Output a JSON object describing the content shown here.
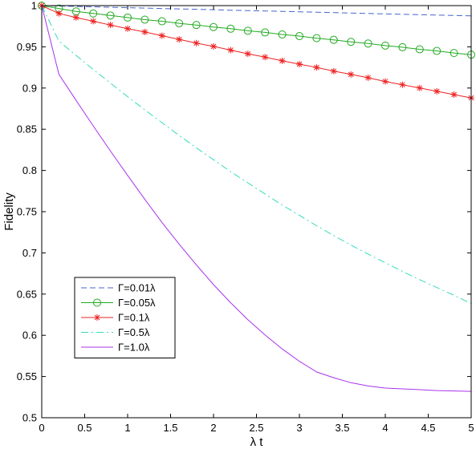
{
  "chart_data": {
    "type": "line",
    "xlabel": "λ t",
    "ylabel": "Fidelity",
    "xlim": [
      0,
      5
    ],
    "ylim": [
      0.5,
      1.0
    ],
    "xticks": [
      0,
      0.5,
      1,
      1.5,
      2,
      2.5,
      3,
      3.5,
      4,
      4.5,
      5
    ],
    "xtick_labels": [
      "0",
      "0.5",
      "1",
      "1.5",
      "2",
      "2.5",
      "3",
      "3.5",
      "4",
      "4.5",
      "5"
    ],
    "yticks": [
      0.5,
      0.55,
      0.6,
      0.65,
      0.7,
      0.75,
      0.8,
      0.85,
      0.9,
      0.95,
      1.0
    ],
    "ytick_labels": [
      "0.5",
      "0.55",
      "0.6",
      "0.65",
      "0.7",
      "0.75",
      "0.8",
      "0.85",
      "0.9",
      "0.95",
      "1"
    ],
    "grid": false,
    "legend_position": "lower-left",
    "x": [
      0,
      0.2,
      0.4,
      0.6,
      0.8,
      1.0,
      1.2,
      1.4,
      1.6,
      1.8,
      2.0,
      2.2,
      2.4,
      2.6,
      2.8,
      3.0,
      3.2,
      3.4,
      3.6,
      3.8,
      4.0,
      4.2,
      4.4,
      4.6,
      4.8,
      5.0
    ],
    "series": [
      {
        "name": "Γ=0.01λ",
        "color": "#4466cc",
        "line_style": "dashed",
        "marker": "none",
        "values": [
          1.0,
          0.9995,
          0.999,
          0.9985,
          0.998,
          0.9975,
          0.997,
          0.9965,
          0.996,
          0.9955,
          0.995,
          0.9945,
          0.994,
          0.9935,
          0.993,
          0.9925,
          0.992,
          0.9915,
          0.991,
          0.9905,
          0.99,
          0.9895,
          0.989,
          0.9885,
          0.988,
          0.9875
        ]
      },
      {
        "name": "Γ=0.05λ",
        "color": "#22aa22",
        "line_style": "solid",
        "marker": "circle",
        "values": [
          1.0,
          0.9965,
          0.993,
          0.9905,
          0.988,
          0.9855,
          0.983,
          0.981,
          0.9785,
          0.9765,
          0.974,
          0.972,
          0.9695,
          0.9675,
          0.965,
          0.963,
          0.9605,
          0.9585,
          0.956,
          0.954,
          0.9515,
          0.9495,
          0.947,
          0.945,
          0.9425,
          0.9405
        ]
      },
      {
        "name": "Γ=0.1λ",
        "color": "#ee2222",
        "line_style": "solid",
        "marker": "star",
        "values": [
          1.0,
          0.9905,
          0.9855,
          0.981,
          0.9765,
          0.972,
          0.968,
          0.9635,
          0.959,
          0.9545,
          0.9505,
          0.946,
          0.9415,
          0.9375,
          0.933,
          0.929,
          0.925,
          0.9205,
          0.9165,
          0.9125,
          0.908,
          0.904,
          0.9,
          0.896,
          0.892,
          0.888
        ]
      },
      {
        "name": "Γ=0.5λ",
        "color": "#33ddbb",
        "line_style": "dashdot",
        "marker": "none",
        "values": [
          1.0,
          0.957,
          0.9395,
          0.9225,
          0.906,
          0.8895,
          0.8735,
          0.858,
          0.8425,
          0.8275,
          0.813,
          0.7985,
          0.785,
          0.7715,
          0.758,
          0.7455,
          0.733,
          0.721,
          0.7095,
          0.6985,
          0.688,
          0.6775,
          0.6675,
          0.658,
          0.6485,
          0.6385
        ]
      },
      {
        "name": "Γ=1.0λ",
        "color": "#aa33ee",
        "line_style": "solid",
        "marker": "none",
        "values": [
          1.0,
          0.9165,
          0.885,
          0.854,
          0.8235,
          0.794,
          0.765,
          0.737,
          0.7105,
          0.6855,
          0.6615,
          0.6395,
          0.619,
          0.6005,
          0.5835,
          0.5685,
          0.5555,
          0.5485,
          0.5425,
          0.5385,
          0.536,
          0.535,
          0.534,
          0.533,
          0.5325,
          0.532
        ]
      }
    ]
  }
}
